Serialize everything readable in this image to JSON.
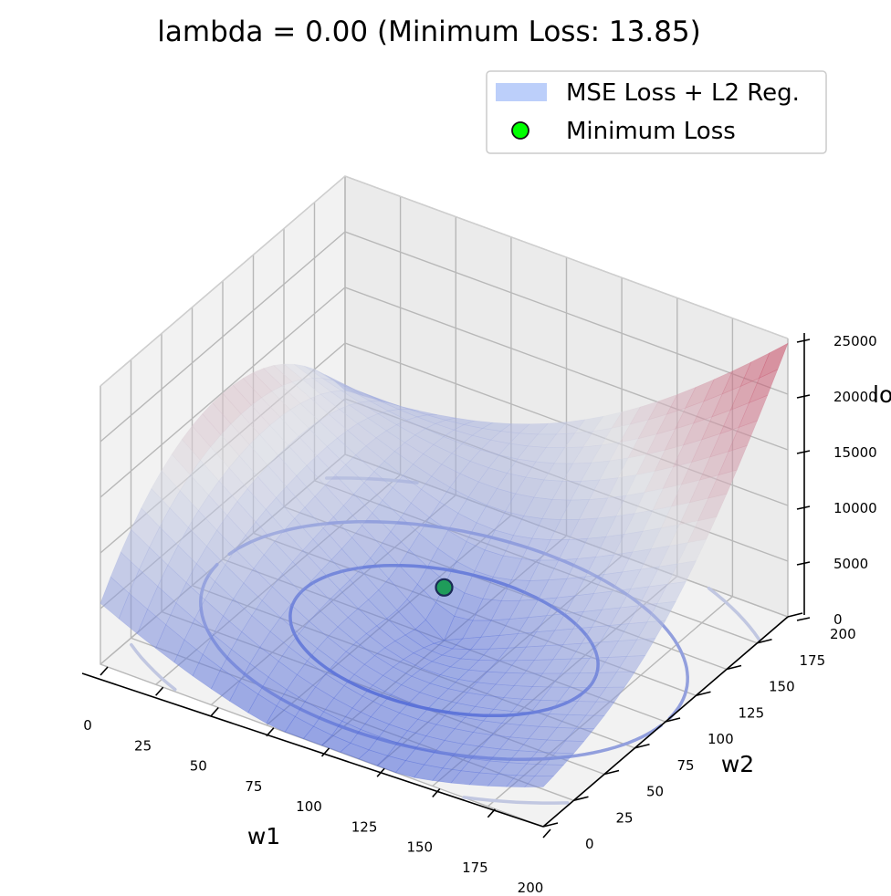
{
  "chart_data": {
    "type": "surface3d",
    "title": "lambda = 0.00 (Minimum Loss: 13.85)",
    "xlabel": "w1",
    "ylabel": "w2",
    "zlabel": "loss",
    "xticks": [
      0,
      25,
      50,
      75,
      100,
      125,
      150,
      175,
      200
    ],
    "yticks": [
      0,
      25,
      50,
      75,
      100,
      125,
      150,
      175,
      200
    ],
    "zticks": [
      0,
      5000,
      10000,
      15000,
      20000,
      25000
    ],
    "xlim": [
      0,
      200
    ],
    "ylim": [
      0,
      200
    ],
    "zlim": [
      0,
      25000
    ],
    "lambda": 0.0,
    "minimum": {
      "w1": 100,
      "w2": 100,
      "loss": 13.85
    },
    "surface_corners": {
      "w1_0_w2_0": 5400,
      "w1_200_w2_0": 3500,
      "w1_0_w2_200": 5700,
      "w1_200_w2_200": 24500,
      "w1_0_w2_100": 19800
    },
    "contour_levels": [
      2000,
      6000,
      10000,
      14000,
      18000
    ],
    "legend": {
      "position": "top-right",
      "entries": [
        "MSE Loss + L2 Reg.",
        "Minimum Loss"
      ]
    },
    "colors": {
      "low": "#4a64d8",
      "mid": "#dcdde3",
      "high": "#c43552",
      "minimum_marker": "#00ff00",
      "legend_patch": "#bccffa"
    }
  }
}
